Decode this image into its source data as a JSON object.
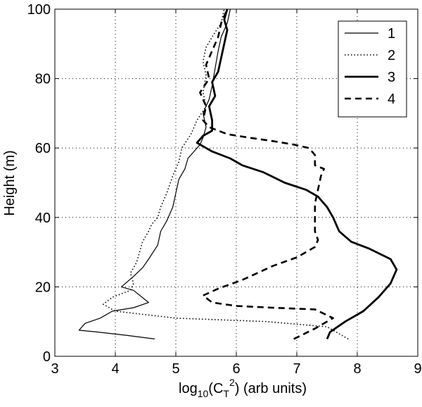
{
  "chart_data": {
    "type": "line",
    "xlabel_parts": {
      "pre": "log",
      "sub": "10",
      "mid": "(C",
      "tsub": "T",
      "sup": "2",
      "post": ") (arb units)"
    },
    "ylabel": "Height (m)",
    "xlim": [
      3,
      9
    ],
    "ylim": [
      0,
      100
    ],
    "xticks": [
      "3",
      "4",
      "5",
      "6",
      "7",
      "8",
      "9"
    ],
    "yticks": [
      "0",
      "20",
      "40",
      "60",
      "80",
      "100"
    ],
    "grid": true,
    "legend_position": "top-right",
    "series": [
      {
        "name": "1",
        "style": "thin-solid",
        "points": [
          [
            4.65,
            5
          ],
          [
            4.2,
            6
          ],
          [
            3.7,
            7
          ],
          [
            3.4,
            7.5
          ],
          [
            3.5,
            9.5
          ],
          [
            3.75,
            11
          ],
          [
            3.95,
            13
          ],
          [
            4.3,
            14
          ],
          [
            4.55,
            15.5
          ],
          [
            4.3,
            19
          ],
          [
            4.1,
            20
          ],
          [
            4.3,
            23
          ],
          [
            4.45,
            25.5
          ],
          [
            4.55,
            28
          ],
          [
            4.7,
            32
          ],
          [
            4.75,
            36
          ],
          [
            4.85,
            39
          ],
          [
            4.95,
            43
          ],
          [
            5.0,
            47
          ],
          [
            5.05,
            51
          ],
          [
            5.15,
            54
          ],
          [
            5.2,
            57
          ],
          [
            5.3,
            59
          ],
          [
            5.4,
            61
          ],
          [
            5.45,
            63
          ],
          [
            5.5,
            66
          ],
          [
            5.45,
            70
          ],
          [
            5.55,
            74
          ],
          [
            5.6,
            78
          ],
          [
            5.65,
            83
          ],
          [
            5.7,
            88
          ],
          [
            5.75,
            92
          ],
          [
            5.85,
            96
          ],
          [
            5.9,
            100
          ]
        ],
        "color": "#000000"
      },
      {
        "name": "2",
        "style": "dotted",
        "points": [
          [
            7.85,
            5
          ],
          [
            7.5,
            8.5
          ],
          [
            6.5,
            10
          ],
          [
            5.0,
            11
          ],
          [
            4.0,
            13
          ],
          [
            3.8,
            15
          ],
          [
            3.95,
            17
          ],
          [
            4.25,
            19
          ],
          [
            4.3,
            21
          ],
          [
            4.25,
            24
          ],
          [
            4.35,
            27
          ],
          [
            4.4,
            30
          ],
          [
            4.45,
            33
          ],
          [
            4.55,
            36
          ],
          [
            4.6,
            38
          ],
          [
            4.7,
            40
          ],
          [
            4.75,
            43
          ],
          [
            4.85,
            47
          ],
          [
            4.95,
            52
          ],
          [
            5.05,
            56
          ],
          [
            5.1,
            60
          ],
          [
            5.25,
            64
          ],
          [
            5.35,
            68
          ],
          [
            5.5,
            72
          ],
          [
            5.45,
            76
          ],
          [
            5.5,
            81
          ],
          [
            5.45,
            85
          ],
          [
            5.5,
            89
          ],
          [
            5.6,
            92
          ],
          [
            5.75,
            96
          ],
          [
            5.8,
            100
          ]
        ],
        "color": "#000000"
      },
      {
        "name": "3",
        "style": "thick-solid",
        "points": [
          [
            7.5,
            5
          ],
          [
            7.55,
            7
          ],
          [
            7.8,
            10
          ],
          [
            8.1,
            13
          ],
          [
            8.35,
            17
          ],
          [
            8.55,
            21
          ],
          [
            8.65,
            25
          ],
          [
            8.55,
            28
          ],
          [
            8.2,
            31
          ],
          [
            7.9,
            33
          ],
          [
            7.7,
            36
          ],
          [
            7.6,
            40
          ],
          [
            7.5,
            43
          ],
          [
            7.35,
            46
          ],
          [
            7.15,
            48
          ],
          [
            6.8,
            50
          ],
          [
            6.45,
            53
          ],
          [
            6.1,
            55
          ],
          [
            5.9,
            57
          ],
          [
            5.6,
            59
          ],
          [
            5.35,
            61.5
          ],
          [
            5.45,
            63.5
          ],
          [
            5.6,
            65
          ],
          [
            5.6,
            68
          ],
          [
            5.55,
            72
          ],
          [
            5.65,
            75
          ],
          [
            5.6,
            79
          ],
          [
            5.7,
            82
          ],
          [
            5.75,
            86
          ],
          [
            5.8,
            90
          ],
          [
            5.85,
            94
          ],
          [
            5.8,
            97
          ],
          [
            5.85,
            100
          ]
        ],
        "color": "#000000"
      },
      {
        "name": "4",
        "style": "dashed",
        "points": [
          [
            6.95,
            5
          ],
          [
            7.3,
            8
          ],
          [
            7.6,
            11
          ],
          [
            7.3,
            13.5
          ],
          [
            6.6,
            14
          ],
          [
            6.0,
            14.5
          ],
          [
            5.6,
            15.5
          ],
          [
            5.45,
            17.5
          ],
          [
            5.7,
            19.5
          ],
          [
            6.1,
            22
          ],
          [
            6.6,
            26
          ],
          [
            7.0,
            28.5
          ],
          [
            7.3,
            31.5
          ],
          [
            7.35,
            33.5
          ],
          [
            7.3,
            36
          ],
          [
            7.3,
            40
          ],
          [
            7.3,
            44
          ],
          [
            7.35,
            48
          ],
          [
            7.4,
            52
          ],
          [
            7.45,
            54
          ],
          [
            7.3,
            55
          ],
          [
            7.3,
            58
          ],
          [
            7.2,
            60
          ],
          [
            6.95,
            61
          ],
          [
            6.6,
            62
          ],
          [
            6.2,
            63
          ],
          [
            5.85,
            64
          ],
          [
            5.55,
            66
          ],
          [
            5.45,
            68
          ],
          [
            5.5,
            72
          ],
          [
            5.4,
            76
          ],
          [
            5.55,
            80
          ],
          [
            5.5,
            84
          ],
          [
            5.6,
            88
          ],
          [
            5.7,
            92
          ],
          [
            5.75,
            96
          ],
          [
            5.85,
            100
          ]
        ],
        "color": "#000000"
      }
    ]
  }
}
